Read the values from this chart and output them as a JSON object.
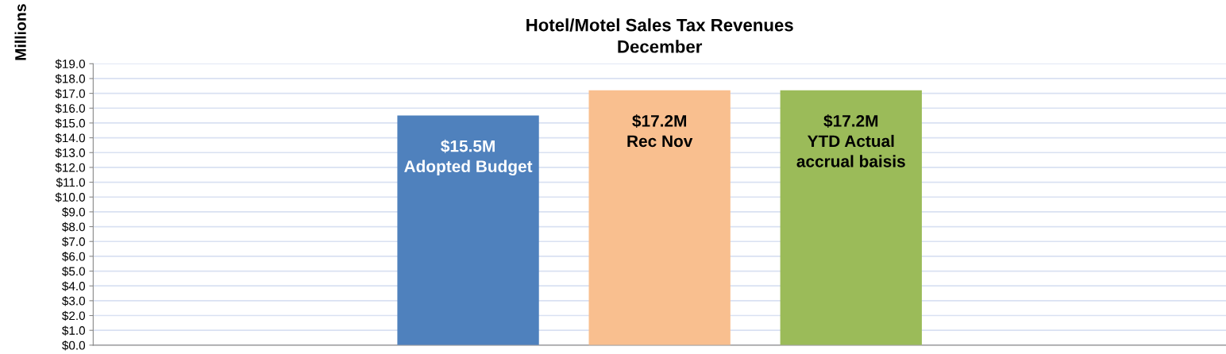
{
  "chart_data": {
    "type": "bar",
    "title": "Hotel/Motel Sales Tax Revenues\nDecember",
    "ylabel": "Millions",
    "categories": [
      null
    ],
    "series": [
      {
        "color": "#4f81bd",
        "values": [
          15.5
        ],
        "value_labels": [
          "$15.5M\nAdopted Budget"
        ]
      },
      {
        "color": "#f9bf8f",
        "values": [
          17.2
        ],
        "value_labels": [
          "$17.2M\nRec Nov"
        ]
      },
      {
        "color": "#9bbb59",
        "values": [
          17.2
        ],
        "value_labels": [
          "$17.2M\nYTD Actual\naccrual baisis"
        ]
      }
    ],
    "ylim": [
      0,
      19
    ],
    "yticks": [
      {
        "value": 0,
        "label": "$0.0"
      },
      {
        "value": 1,
        "label": "$1.0"
      },
      {
        "value": 2,
        "label": "$2.0"
      },
      {
        "value": 3,
        "label": "$3.0"
      },
      {
        "value": 4,
        "label": "$4.0"
      },
      {
        "value": 5,
        "label": "$5.0"
      },
      {
        "value": 6,
        "label": "$6.0"
      },
      {
        "value": 7,
        "label": "$7.0"
      },
      {
        "value": 8,
        "label": "$8.0"
      },
      {
        "value": 9,
        "label": "$9.0"
      },
      {
        "value": 10,
        "label": "$10.0"
      },
      {
        "value": 11,
        "label": "$11.0"
      },
      {
        "value": 12,
        "label": "$12.0"
      },
      {
        "value": 13,
        "label": "$13.0"
      },
      {
        "value": 14,
        "label": "$14.0"
      },
      {
        "value": 15,
        "label": "$15.0"
      },
      {
        "value": 16,
        "label": "$16.0"
      },
      {
        "value": 17,
        "label": "$17.0"
      },
      {
        "value": 18,
        "label": "$18.0"
      },
      {
        "value": 19,
        "label": "$19.0"
      }
    ],
    "grid": "y",
    "legend": false
  }
}
